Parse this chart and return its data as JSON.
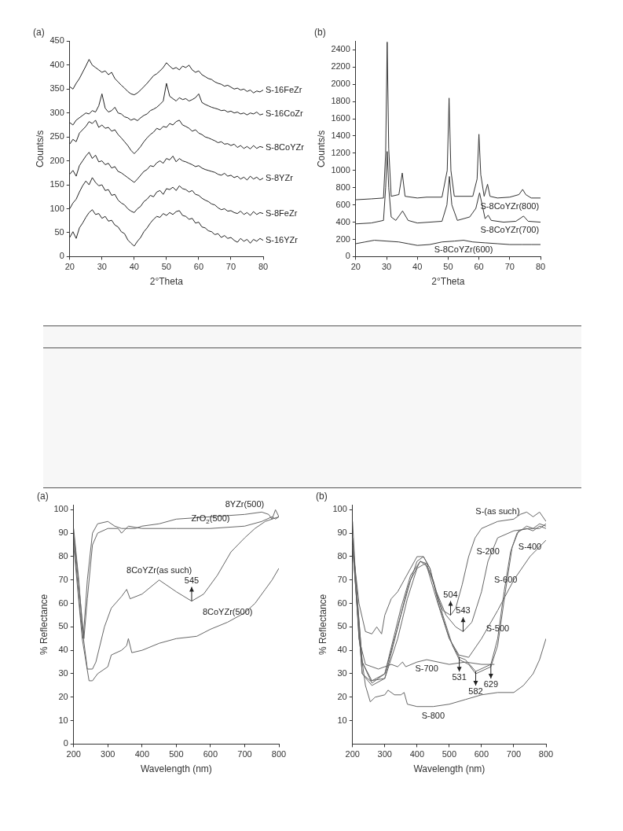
{
  "chart_data": [
    {
      "type": "line",
      "title": "(a)",
      "xlabel": "2°Theta",
      "ylabel": "Counts/s",
      "xlim": [
        20,
        80
      ],
      "xticks": [
        20,
        30,
        40,
        50,
        60,
        70,
        80
      ],
      "ylim": [
        0,
        450
      ],
      "yticks": [
        0,
        50,
        100,
        150,
        200,
        250,
        300,
        350,
        400,
        450
      ],
      "grid": false,
      "legend": false,
      "marker": "none",
      "x": [
        20,
        21,
        22,
        23,
        24,
        25,
        26,
        27,
        28,
        29,
        30,
        31,
        32,
        33,
        34,
        35,
        36,
        37,
        38,
        39,
        40,
        41,
        42,
        43,
        44,
        45,
        46,
        47,
        48,
        49,
        50,
        51,
        52,
        53,
        54,
        55,
        56,
        57,
        58,
        59,
        60,
        61,
        62,
        63,
        64,
        65,
        66,
        67,
        68,
        69,
        70,
        71,
        72,
        73,
        74,
        75,
        76,
        77,
        78,
        79,
        80
      ],
      "series": [
        {
          "color": "#222222",
          "values": [
            40,
            52,
            38,
            60,
            70,
            82,
            92,
            98,
            88,
            90,
            80,
            84,
            74,
            76,
            66,
            62,
            52,
            48,
            35,
            28,
            22,
            32,
            40,
            52,
            60,
            70,
            78,
            84,
            82,
            90,
            86,
            92,
            88,
            94,
            96,
            86,
            84,
            78,
            80,
            70,
            72,
            62,
            60,
            54,
            52,
            46,
            48,
            40,
            44,
            38,
            40,
            34,
            30,
            38,
            32,
            36,
            28,
            36,
            32,
            38,
            34
          ]
        },
        {
          "color": "#222222",
          "values": [
            100,
            112,
            120,
            135,
            148,
            158,
            150,
            165,
            155,
            148,
            150,
            138,
            140,
            128,
            130,
            118,
            112,
            108,
            100,
            95,
            92,
            100,
            105,
            115,
            120,
            128,
            125,
            135,
            138,
            130,
            142,
            140,
            145,
            138,
            148,
            142,
            140,
            135,
            138,
            130,
            128,
            122,
            118,
            115,
            110,
            108,
            102,
            98,
            100,
            95,
            96,
            92,
            90,
            95,
            88,
            92,
            86,
            94,
            88,
            92,
            90
          ]
        },
        {
          "color": "#222222",
          "values": [
            172,
            180,
            168,
            190,
            200,
            210,
            218,
            205,
            212,
            198,
            200,
            192,
            195,
            185,
            188,
            178,
            175,
            170,
            165,
            160,
            155,
            162,
            170,
            178,
            182,
            190,
            188,
            196,
            200,
            195,
            205,
            202,
            210,
            198,
            205,
            200,
            198,
            195,
            192,
            188,
            190,
            185,
            182,
            180,
            178,
            176,
            172,
            170,
            174,
            168,
            170,
            165,
            168,
            162,
            166,
            160,
            168,
            162,
            166,
            160,
            164
          ]
        },
        {
          "color": "#222222",
          "values": [
            235,
            245,
            240,
            258,
            265,
            272,
            282,
            278,
            285,
            270,
            275,
            268,
            270,
            262,
            265,
            255,
            248,
            240,
            232,
            222,
            215,
            222,
            230,
            240,
            248,
            255,
            260,
            268,
            265,
            272,
            270,
            278,
            275,
            282,
            285,
            275,
            272,
            268,
            262,
            265,
            258,
            255,
            250,
            248,
            245,
            242,
            238,
            240,
            235,
            236,
            232,
            235,
            228,
            232,
            226,
            230,
            225,
            232,
            226,
            230,
            228
          ]
        },
        {
          "color": "#222222",
          "values": [
            280,
            275,
            285,
            290,
            295,
            300,
            298,
            305,
            302,
            315,
            340,
            310,
            302,
            305,
            312,
            300,
            298,
            292,
            290,
            285,
            288,
            284,
            290,
            295,
            298,
            305,
            308,
            312,
            318,
            325,
            362,
            335,
            330,
            325,
            332,
            328,
            330,
            325,
            328,
            332,
            340,
            322,
            318,
            315,
            312,
            310,
            308,
            305,
            306,
            302,
            304,
            300,
            302,
            298,
            300,
            296,
            300,
            298,
            302,
            296,
            298
          ]
        },
        {
          "color": "#222222",
          "values": [
            355,
            350,
            362,
            372,
            385,
            398,
            412,
            400,
            395,
            390,
            385,
            388,
            380,
            385,
            372,
            365,
            358,
            352,
            345,
            340,
            338,
            342,
            348,
            355,
            362,
            370,
            378,
            382,
            388,
            395,
            405,
            398,
            392,
            395,
            390,
            398,
            395,
            400,
            390,
            385,
            388,
            380,
            376,
            372,
            370,
            365,
            362,
            360,
            356,
            358,
            354,
            350,
            352,
            348,
            350,
            345,
            348,
            342,
            346,
            344,
            348
          ]
        }
      ],
      "annotations": [
        {
          "text": "S-16FeZr",
          "x": 80,
          "y": 348
        },
        {
          "text": "S-16CoZr",
          "x": 80,
          "y": 298
        },
        {
          "text": "S-8CoYZr",
          "x": 80,
          "y": 228
        },
        {
          "text": "S-8YZr",
          "x": 80,
          "y": 164
        },
        {
          "text": "S-8FeZr",
          "x": 80,
          "y": 90
        },
        {
          "text": "S-16YZr",
          "x": 80,
          "y": 34
        }
      ]
    },
    {
      "type": "line",
      "title": "(b)",
      "xlabel": "2°Theta",
      "ylabel": "Counts/s",
      "xlim": [
        20,
        80
      ],
      "xticks": [
        20,
        30,
        40,
        50,
        60,
        70,
        80
      ],
      "ylim": [
        0,
        2500
      ],
      "yticks": [
        0,
        200,
        400,
        600,
        800,
        1000,
        1200,
        1400,
        1600,
        1800,
        2000,
        2200,
        2400
      ],
      "grid": false,
      "legend": false,
      "marker": "none",
      "series": [
        {
          "color": "#333333",
          "x": [
            20,
            25,
            29,
            29.7,
            30.2,
            30.7,
            31.5,
            34,
            35.1,
            36,
            40,
            43,
            48,
            49.7,
            50.3,
            50.9,
            52,
            58,
            59.4,
            60,
            60.6,
            61.7,
            62.8,
            63.6,
            66,
            70,
            73,
            74.2,
            75.2,
            77,
            80
          ],
          "values": [
            660,
            670,
            680,
            1200,
            2490,
            1250,
            700,
            720,
            970,
            700,
            680,
            690,
            690,
            1000,
            1840,
            1000,
            700,
            700,
            900,
            1420,
            950,
            700,
            840,
            700,
            680,
            690,
            720,
            780,
            720,
            680,
            680
          ]
        },
        {
          "color": "#333333",
          "x": [
            20,
            25,
            29,
            29.7,
            30.2,
            30.7,
            31.5,
            33,
            35.2,
            37,
            40,
            48,
            49.6,
            50.4,
            51.2,
            53,
            57,
            59,
            60.2,
            61.3,
            62,
            63,
            64,
            68,
            72,
            74.5,
            76,
            80
          ],
          "values": [
            380,
            390,
            420,
            800,
            1220,
            800,
            460,
            420,
            530,
            420,
            390,
            410,
            600,
            930,
            600,
            420,
            460,
            560,
            740,
            560,
            440,
            480,
            420,
            400,
            410,
            470,
            410,
            400
          ]
        },
        {
          "color": "#333333",
          "x": [
            20,
            23,
            26,
            30,
            34,
            37,
            40,
            44,
            48,
            52,
            55,
            58,
            62,
            66,
            70,
            74,
            77,
            80
          ],
          "values": [
            150,
            170,
            190,
            180,
            170,
            150,
            130,
            140,
            170,
            180,
            190,
            170,
            160,
            150,
            140,
            140,
            140,
            140
          ]
        }
      ],
      "annotations": [
        {
          "text": "S-8CoYZr(800)",
          "x": 70,
          "y": 690
        },
        {
          "text": "S-8CoYZr(700)",
          "x": 70,
          "y": 410
        },
        {
          "text": "S-8CoYZr(600)",
          "x": 55,
          "y": 190
        }
      ]
    },
    {
      "type": "line",
      "title": "(a)",
      "xlabel": "Wavelength (nm)",
      "ylabel": "% Reflectance",
      "xlim": [
        200,
        800
      ],
      "xticks": [
        200,
        300,
        400,
        500,
        600,
        700,
        800
      ],
      "ylim": [
        0,
        102
      ],
      "yticks": [
        0,
        10,
        20,
        30,
        40,
        50,
        60,
        70,
        80,
        90,
        100
      ],
      "grid": false,
      "legend": false,
      "marker": "none",
      "series": [
        {
          "color": "#666666",
          "x": [
            200,
            215,
            228,
            240,
            255,
            270,
            300,
            320,
            340,
            380,
            400,
            450,
            500,
            600,
            700,
            750,
            770,
            780,
            790,
            800
          ],
          "values": [
            92,
            70,
            45,
            70,
            90,
            94,
            95,
            93,
            92,
            92,
            93,
            94,
            96,
            97,
            98,
            99,
            98,
            96,
            100,
            97
          ]
        },
        {
          "color": "#666666",
          "x": [
            200,
            215,
            230,
            240,
            255,
            270,
            300,
            330,
            340,
            360,
            400,
            500,
            600,
            700,
            750,
            780,
            790,
            800
          ],
          "values": [
            90,
            68,
            45,
            62,
            85,
            90,
            92,
            92,
            90,
            93,
            92,
            92,
            92,
            93,
            95,
            97,
            96,
            97
          ]
        },
        {
          "color": "#666666",
          "x": [
            200,
            220,
            240,
            255,
            265,
            290,
            310,
            340,
            355,
            365,
            400,
            450,
            500,
            545,
            580,
            620,
            660,
            700,
            730,
            760,
            800
          ],
          "values": [
            88,
            55,
            32,
            32,
            35,
            50,
            58,
            63,
            66,
            62,
            64,
            70,
            65,
            61,
            64,
            72,
            82,
            88,
            92,
            95,
            97
          ]
        },
        {
          "color": "#666666",
          "x": [
            200,
            225,
            245,
            255,
            270,
            300,
            310,
            340,
            355,
            360,
            370,
            400,
            450,
            500,
            560,
            600,
            650,
            700,
            730,
            760,
            780,
            800
          ],
          "values": [
            85,
            45,
            27,
            27,
            30,
            33,
            38,
            40,
            42,
            45,
            39,
            40,
            43,
            45,
            46,
            49,
            52,
            56,
            60,
            66,
            70,
            75
          ]
        }
      ],
      "annotations": [
        {
          "text": "8YZr(500)",
          "x": 700,
          "y": 98
        },
        {
          "text": "ZrO$_{2}$(500)",
          "x": 600,
          "y": 92
        },
        {
          "text": "8CoYZr(as such)",
          "x": 450,
          "y": 70
        },
        {
          "text": "545",
          "x": 545,
          "y": 61
        },
        {
          "text": "8CoYZr(500)",
          "x": 650,
          "y": 52
        }
      ]
    },
    {
      "type": "line",
      "title": "(b)",
      "xlabel": "Wavelength (nm)",
      "ylabel": "% Reflectance",
      "xlim": [
        200,
        800
      ],
      "xticks": [
        200,
        300,
        400,
        500,
        600,
        700,
        800
      ],
      "ylim": [
        0,
        102
      ],
      "yticks": [
        10,
        20,
        30,
        40,
        50,
        60,
        70,
        80,
        90,
        100
      ],
      "grid": false,
      "legend": false,
      "marker": "none",
      "series": [
        {
          "color": "#666666",
          "x": [
            200,
            220,
            240,
            260,
            275,
            290,
            300,
            320,
            340,
            360,
            400,
            420,
            440,
            460,
            480,
            504,
            520,
            540,
            560,
            580,
            600,
            650,
            700,
            720,
            740,
            760,
            780,
            800
          ],
          "values": [
            85,
            60,
            48,
            47,
            50,
            47,
            55,
            62,
            65,
            70,
            80,
            80,
            75,
            64,
            57,
            55,
            58,
            68,
            80,
            88,
            92,
            95,
            96,
            98,
            99,
            97,
            99,
            95
          ]
        },
        {
          "color": "#666666",
          "x": [
            200,
            230,
            260,
            300,
            350,
            380,
            410,
            430,
            460,
            490,
            520,
            543,
            570,
            600,
            620,
            650,
            700,
            750,
            780,
            800
          ],
          "values": [
            88,
            35,
            27,
            30,
            58,
            72,
            78,
            77,
            65,
            55,
            50,
            48,
            52,
            65,
            78,
            88,
            91,
            92,
            92,
            94
          ]
        },
        {
          "color": "#666666",
          "x": [
            200,
            230,
            255,
            300,
            350,
            380,
            410,
            430,
            460,
            500,
            530,
            560,
            600,
            650,
            700,
            750,
            800
          ],
          "values": [
            85,
            30,
            27,
            28,
            55,
            70,
            78,
            76,
            62,
            45,
            38,
            37,
            45,
            57,
            70,
            80,
            87
          ]
        },
        {
          "color": "#666666",
          "x": [
            200,
            230,
            260,
            300,
            340,
            370,
            400,
            420,
            440,
            470,
            500,
            531,
            550,
            582,
            629,
            650,
            670,
            690,
            710,
            740,
            760,
            780,
            800
          ],
          "values": [
            88,
            35,
            26,
            30,
            50,
            66,
            78,
            80,
            75,
            58,
            45,
            37,
            36,
            31,
            34,
            45,
            65,
            82,
            90,
            93,
            92,
            94,
            93
          ]
        },
        {
          "color": "#666666",
          "x": [
            200,
            230,
            260,
            300,
            340,
            370,
            400,
            425,
            450,
            480,
            510,
            531,
            560,
            582,
            629,
            650,
            675,
            695,
            715,
            740,
            760,
            780,
            800
          ],
          "values": [
            84,
            30,
            25,
            28,
            45,
            62,
            75,
            77,
            70,
            55,
            42,
            36,
            34,
            30,
            33,
            42,
            66,
            84,
            91,
            92,
            91,
            93,
            92
          ]
        },
        {
          "color": "#666666",
          "x": [
            200,
            220,
            240,
            260,
            280,
            300,
            320,
            340,
            355,
            365,
            400,
            430,
            500,
            550,
            600,
            640
          ],
          "values": [
            88,
            45,
            34,
            33,
            32,
            33,
            34,
            33,
            35,
            33,
            35,
            36,
            34,
            35,
            34,
            34
          ]
        },
        {
          "color": "#666666",
          "x": [
            200,
            220,
            240,
            255,
            270,
            300,
            310,
            330,
            350,
            360,
            370,
            400,
            450,
            500,
            550,
            600,
            650,
            700,
            730,
            760,
            780,
            800
          ],
          "values": [
            95,
            45,
            25,
            18,
            20,
            21,
            23,
            21,
            21,
            22,
            17,
            16,
            16,
            17,
            19,
            21,
            22,
            22,
            25,
            30,
            36,
            45
          ]
        }
      ],
      "annotations": [
        {
          "text": "S-(as such)",
          "x": 650,
          "y": 95
        },
        {
          "text": "S-200",
          "x": 620,
          "y": 78
        },
        {
          "text": "504",
          "x": 504,
          "y": 55
        },
        {
          "text": "543",
          "x": 543,
          "y": 48
        },
        {
          "text": "S-400",
          "x": 750,
          "y": 80
        },
        {
          "text": "S-500",
          "x": 650,
          "y": 45
        },
        {
          "text": "S-600",
          "x": 675,
          "y": 66
        },
        {
          "text": "S-700",
          "x": 430,
          "y": 36
        },
        {
          "text": "531",
          "x": 531,
          "y": 37
        },
        {
          "text": "582",
          "x": 582,
          "y": 31
        },
        {
          "text": "629",
          "x": 629,
          "y": 34
        },
        {
          "text": "S-800",
          "x": 450,
          "y": 16
        }
      ]
    }
  ]
}
